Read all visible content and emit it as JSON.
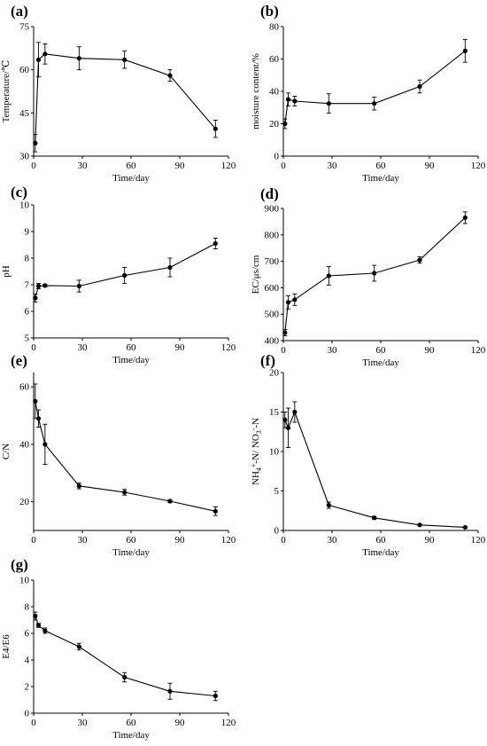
{
  "figure": {
    "colors": {
      "line": "#000000",
      "marker": "#000000",
      "background": "#ffffff"
    }
  },
  "chart_data": [
    {
      "panel": "(a)",
      "type": "line",
      "xlabel": "Time/day",
      "ylabel": "Temperature/℃",
      "xlim": [
        0,
        120
      ],
      "ylim": [
        30,
        75
      ],
      "xticks": [
        0,
        30,
        60,
        90,
        120
      ],
      "yticks": [
        30,
        45,
        60,
        75
      ],
      "x": [
        1,
        3,
        7,
        28,
        56,
        84,
        112
      ],
      "values": [
        34.5,
        63.5,
        65.5,
        64.0,
        63.5,
        58.0,
        39.5
      ],
      "err": [
        3.0,
        6.0,
        3.5,
        4.0,
        3.0,
        2.0,
        3.0
      ]
    },
    {
      "panel": "(b)",
      "type": "line",
      "xlabel": "Time/day",
      "ylabel": "moisture content/%",
      "xlim": [
        0,
        120
      ],
      "ylim": [
        0,
        80
      ],
      "xticks": [
        0,
        30,
        60,
        90,
        120
      ],
      "yticks": [
        0,
        20,
        40,
        60,
        80
      ],
      "x": [
        1,
        3,
        7,
        28,
        56,
        84,
        112
      ],
      "values": [
        20.0,
        35.0,
        34.0,
        32.5,
        32.5,
        43.0,
        65.0
      ],
      "err": [
        3.0,
        4.0,
        3.0,
        6.0,
        4.0,
        4.0,
        7.0
      ]
    },
    {
      "panel": "(c)",
      "type": "line",
      "xlabel": "Time/day",
      "ylabel": "pH",
      "xlim": [
        0,
        120
      ],
      "ylim": [
        5,
        10
      ],
      "xticks": [
        0,
        30,
        60,
        90,
        120
      ],
      "yticks": [
        5,
        6,
        7,
        8,
        9,
        10
      ],
      "x": [
        1,
        3,
        7,
        28,
        56,
        84,
        112
      ],
      "values": [
        6.5,
        6.95,
        6.97,
        6.95,
        7.35,
        7.65,
        8.55
      ],
      "err": [
        0.15,
        0.1,
        0.05,
        0.22,
        0.3,
        0.35,
        0.2
      ]
    },
    {
      "panel": "(d)",
      "type": "line",
      "xlabel": "Time/day",
      "ylabel": "EC/μs/cm",
      "xlim": [
        0,
        120
      ],
      "ylim": [
        400,
        900
      ],
      "xticks": [
        0,
        30,
        60,
        90,
        120
      ],
      "yticks": [
        400,
        500,
        600,
        700,
        800,
        900
      ],
      "x": [
        1,
        3,
        7,
        28,
        56,
        84,
        112
      ],
      "values": [
        430,
        545,
        555,
        645,
        655,
        705,
        865
      ],
      "err": [
        12,
        25,
        22,
        35,
        30,
        12,
        22
      ]
    },
    {
      "panel": "(e)",
      "type": "line",
      "xlabel": "Time/day",
      "ylabel": "C/N",
      "xlim": [
        0,
        120
      ],
      "ylim": [
        10,
        65
      ],
      "xticks": [
        0,
        30,
        60,
        90,
        120
      ],
      "yticks": [
        20,
        40,
        60
      ],
      "x": [
        1,
        3,
        7,
        28,
        56,
        84,
        112
      ],
      "values": [
        55.0,
        49.0,
        40.0,
        25.5,
        23.3,
        20.2,
        16.7
      ],
      "err": [
        6.0,
        3.0,
        7.0,
        1.0,
        1.0,
        0.5,
        1.5
      ]
    },
    {
      "panel": "(f)",
      "type": "line",
      "xlabel": "Time/day",
      "ylabel": "NH4+-N/ NO3--N",
      "xlim": [
        0,
        120
      ],
      "ylim": [
        0,
        20
      ],
      "xticks": [
        0,
        30,
        60,
        90,
        120
      ],
      "yticks": [
        0,
        5,
        10,
        15,
        20
      ],
      "x": [
        1,
        3,
        7,
        28,
        56,
        84,
        112
      ],
      "values": [
        14.0,
        13.0,
        15.0,
        3.2,
        1.6,
        0.7,
        0.4
      ],
      "err": [
        1.0,
        2.5,
        1.3,
        0.4,
        0.2,
        0.1,
        0.1
      ]
    },
    {
      "panel": "(g)",
      "type": "line",
      "xlabel": "Time/day",
      "ylabel": "E4/E6",
      "xlim": [
        0,
        120
      ],
      "ylim": [
        0,
        10
      ],
      "xticks": [
        0,
        30,
        60,
        90,
        120
      ],
      "yticks": [
        0,
        2,
        4,
        6,
        8,
        10
      ],
      "x": [
        1,
        3,
        7,
        28,
        56,
        84,
        112
      ],
      "values": [
        7.3,
        6.6,
        6.2,
        5.0,
        2.7,
        1.65,
        1.3
      ],
      "err": [
        0.3,
        0.15,
        0.2,
        0.25,
        0.35,
        0.6,
        0.35
      ]
    }
  ]
}
